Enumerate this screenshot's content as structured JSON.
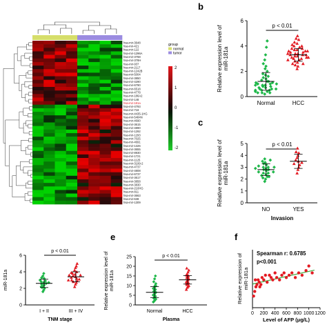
{
  "heatmap": {
    "legend_title": "group",
    "legend_items": [
      "normal",
      "tumor"
    ],
    "group_colors": {
      "normal": "#d6de6a",
      "tumor": "#9b8ce0"
    },
    "scale_ticks": [
      "2",
      "1",
      "0",
      "-1",
      "-2"
    ],
    "highlight_label": "hsa-mir-181a",
    "genes": [
      "hsa-mir-3648",
      "hsa-mir-421",
      "hsa-mir-122",
      "hsa-mir-1296A",
      "hsa-mir-3768",
      "hsa-mir-378H",
      "hsa-mir-937",
      "hsa-mir-2117",
      "hsa-mir-1242B",
      "hsa-mir-5004",
      "hsa-mir-3850",
      "hsa-mir-4290",
      "hsa-mir-6790",
      "hsa-mir-6518",
      "hsa-mir-4778",
      "hsa-mir-186A2",
      "hsa-mir-148",
      "hsa-mir-181a",
      "hsa-mir-4793",
      "hsa-mir-718",
      "hsa-mir-4435-1HG",
      "hsa-mir-5484N",
      "hsa-mir-4690",
      "hsa-mir-3615",
      "hsa-mir-4890",
      "hsa-mir-1292",
      "hsa-mir-1293",
      "hsa-mir-7025",
      "hsa-mir-4691",
      "hsa-mir-1326",
      "hsa-mir-3655",
      "hsa-mir-8930",
      "hsa-mir-1721",
      "hsa-mir-1125",
      "hsa-mir-3199-2",
      "hsa-mir-4737",
      "hsa-mir-4808",
      "hsa-mir-6737",
      "hsa-mir-3617",
      "hsa-mir-3858",
      "hsa-mir-3830",
      "hsa-mir-210HG",
      "hsa-mir-811",
      "hsa-mir-3663",
      "hsa-mir-638",
      "hsa-mir-1309"
    ],
    "group_counts": {
      "normal": 4,
      "tumor": 4
    }
  },
  "panels": {
    "b": {
      "letter": "b"
    },
    "c": {
      "letter": "c"
    },
    "d": {
      "letter": ""
    },
    "e": {
      "letter": "e"
    },
    "f": {
      "letter": "f"
    }
  },
  "chart_data": [
    {
      "id": "b",
      "type": "scatter",
      "ylabel": "Relative expression level of miR-181a",
      "categories": [
        "Normal",
        "HCC"
      ],
      "ylim": [
        0,
        6
      ],
      "yticks": [
        0,
        2,
        4,
        6
      ],
      "pvalue": "p < 0.01",
      "series": [
        {
          "name": "Normal",
          "color": "#1fb84a",
          "mean": 1.2,
          "sd_low": 0.5,
          "sd_high": 1.9,
          "values": [
            0.2,
            0.3,
            0.3,
            0.4,
            0.5,
            0.5,
            0.6,
            0.6,
            0.7,
            0.8,
            0.8,
            0.9,
            0.9,
            1.0,
            1.0,
            1.1,
            1.1,
            1.2,
            1.3,
            1.4,
            1.5,
            1.6,
            1.7,
            1.8,
            2.0,
            2.2,
            2.4,
            2.6,
            2.9,
            3.3,
            3.9,
            4.4,
            0.4,
            0.7,
            1.0,
            0.3,
            0.6,
            0.5,
            0.9,
            1.2
          ]
        },
        {
          "name": "HCC",
          "color": "#e31b23",
          "mean": 3.3,
          "sd_low": 2.8,
          "sd_high": 3.8,
          "values": [
            2.2,
            2.4,
            2.5,
            2.6,
            2.7,
            2.8,
            2.9,
            3.0,
            3.0,
            3.1,
            3.1,
            3.2,
            3.2,
            3.3,
            3.3,
            3.4,
            3.4,
            3.5,
            3.5,
            3.6,
            3.6,
            3.7,
            3.7,
            3.8,
            3.9,
            4.0,
            4.0,
            4.1,
            4.2,
            4.3,
            4.5,
            4.6,
            4.8,
            2.9,
            3.3,
            3.6,
            3.1,
            3.8,
            2.6,
            3.4
          ]
        }
      ]
    },
    {
      "id": "c",
      "type": "scatter",
      "ylabel": "Relative expression level of miR-181a",
      "xlabel": "Invasion",
      "categories": [
        "NO",
        "YES"
      ],
      "ylim": [
        0,
        5
      ],
      "yticks": [
        0,
        1,
        2,
        3,
        4,
        5
      ],
      "pvalue": "p < 0.01",
      "series": [
        {
          "name": "NO",
          "color": "#1fb84a",
          "mean": 2.8,
          "sd_low": 2.3,
          "sd_high": 3.3,
          "values": [
            1.8,
            2.0,
            2.1,
            2.2,
            2.3,
            2.4,
            2.5,
            2.5,
            2.6,
            2.7,
            2.8,
            2.8,
            2.9,
            3.0,
            3.0,
            3.1,
            3.2,
            3.3,
            3.4,
            3.5,
            3.6,
            3.7,
            2.2,
            2.6,
            3.0,
            2.9
          ]
        },
        {
          "name": "YES",
          "color": "#e31b23",
          "mean": 3.5,
          "sd_low": 2.9,
          "sd_high": 4.1,
          "values": [
            2.5,
            2.8,
            3.0,
            3.2,
            3.3,
            3.5,
            3.6,
            3.8,
            4.0,
            4.2,
            4.3,
            4.6,
            3.4
          ]
        }
      ]
    },
    {
      "id": "d",
      "type": "scatter",
      "ylabel": "miR-181a",
      "xlabel": "TNM stage",
      "categories": [
        "I + II",
        "III + IV"
      ],
      "ylim": [
        0,
        6
      ],
      "yticks": [
        0,
        2,
        4,
        6
      ],
      "pvalue": "p < 0.01",
      "series": [
        {
          "name": "I + II",
          "color": "#1fb84a",
          "mean": 2.6,
          "sd_low": 2.1,
          "sd_high": 3.1,
          "values": [
            1.6,
            1.8,
            2.0,
            2.1,
            2.3,
            2.4,
            2.5,
            2.6,
            2.7,
            2.8,
            2.9,
            3.0,
            3.2,
            3.3,
            3.5,
            3.8,
            2.2,
            2.7
          ]
        },
        {
          "name": "III + IV",
          "color": "#e31b23",
          "mean": 3.4,
          "sd_low": 2.8,
          "sd_high": 4.0,
          "values": [
            2.2,
            2.5,
            2.7,
            2.9,
            3.0,
            3.1,
            3.2,
            3.3,
            3.4,
            3.5,
            3.6,
            3.7,
            3.8,
            4.0,
            4.2,
            4.5,
            4.7,
            5.0,
            3.0,
            3.6,
            2.8,
            3.9
          ]
        }
      ]
    },
    {
      "id": "e",
      "type": "scatter",
      "ylabel": "Relative expression level of miR-181a",
      "xlabel": "Plasma",
      "categories": [
        "Normal",
        "HCC"
      ],
      "ylim": [
        0,
        25
      ],
      "yticks": [
        0,
        5,
        10,
        15,
        20,
        25
      ],
      "pvalue": "p < 0.01",
      "series": [
        {
          "name": "Normal",
          "color": "#1fb84a",
          "mean": 6.5,
          "sd_low": 3.8,
          "sd_high": 9.5,
          "values": [
            1.5,
            2.0,
            2.5,
            3.0,
            3.5,
            4.0,
            4.5,
            5.0,
            5.5,
            6.0,
            6.5,
            7.0,
            7.5,
            8.0,
            8.5,
            9.0,
            10.0,
            11.0,
            12.0,
            13.5,
            15.0,
            5.2,
            6.8,
            3.2,
            9.8
          ]
        },
        {
          "name": "HCC",
          "color": "#e31b23",
          "mean": 13.0,
          "sd_low": 10.8,
          "sd_high": 15.2,
          "values": [
            8.0,
            9.0,
            9.5,
            10.0,
            10.5,
            11.0,
            11.5,
            12.0,
            12.5,
            13.0,
            13.5,
            14.0,
            14.5,
            15.0,
            15.5,
            16.0,
            17.0,
            18.0,
            19.0,
            12.2,
            13.8,
            11.2,
            14.8
          ]
        }
      ]
    },
    {
      "id": "f",
      "type": "scatter",
      "ylabel": "Relative expression of miR-181a",
      "xlabel": "Level of AFP (μg/L)",
      "xticks": [
        "0",
        "200",
        "400",
        "600",
        "800",
        "1000",
        "1200"
      ],
      "ylim": [
        0,
        25
      ],
      "annotation_1": "Spearman r: 0.6785",
      "annotation_2": "p<0.001",
      "fit": {
        "x0": 0,
        "y0": 10.2,
        "x1": 1100,
        "y1": 16.2,
        "color": "#3aa83a"
      },
      "points": [
        [
          20,
          5
        ],
        [
          40,
          7
        ],
        [
          60,
          9
        ],
        [
          80,
          10
        ],
        [
          100,
          12
        ],
        [
          120,
          11
        ],
        [
          150,
          10
        ],
        [
          170,
          13
        ],
        [
          200,
          12
        ],
        [
          230,
          14
        ],
        [
          260,
          11
        ],
        [
          300,
          14
        ],
        [
          330,
          13
        ],
        [
          360,
          12
        ],
        [
          400,
          15
        ],
        [
          430,
          13
        ],
        [
          480,
          12
        ],
        [
          520,
          14
        ],
        [
          560,
          15
        ],
        [
          600,
          13
        ],
        [
          650,
          14
        ],
        [
          700,
          15
        ],
        [
          760,
          13
        ],
        [
          820,
          15
        ],
        [
          880,
          14
        ],
        [
          950,
          16
        ],
        [
          1000,
          18
        ],
        [
          1060,
          15
        ],
        [
          50,
          12
        ],
        [
          130,
          9
        ]
      ],
      "point_color": "#e31b23"
    }
  ]
}
